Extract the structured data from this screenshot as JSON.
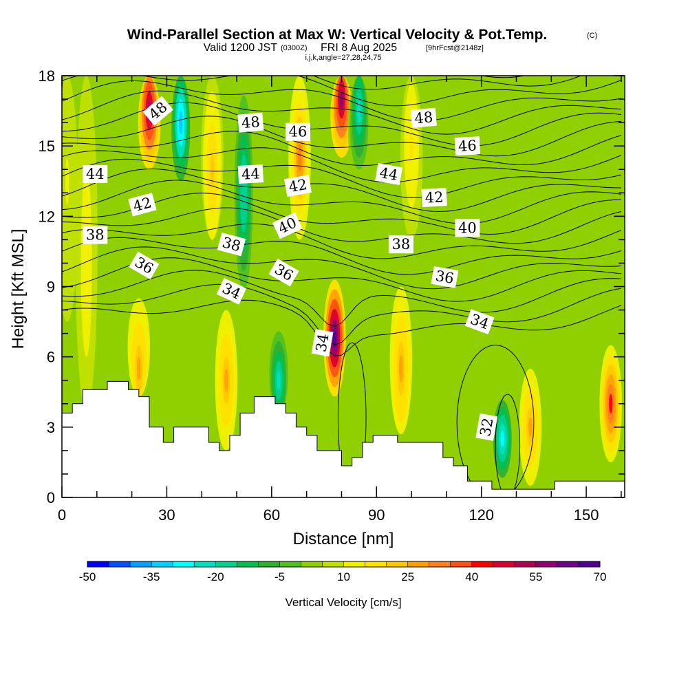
{
  "chart_data": {
    "type": "heatmap",
    "title": "Wind-Parallel Section at Max W: Vertical Velocity & Pot.Temp.",
    "title_mark": "(C)",
    "subtitle_valid": "Valid 1200 JST",
    "subtitle_utc": "(0300Z)",
    "subtitle_date": "FRI 8 Aug 2025",
    "subtitle_fcst": "[9hrFcst@2148z]",
    "subtitle_indices": "i,j,k,angle=27,28,24,75",
    "xlabel": "Distance [nm]",
    "ylabel": "Height [Kft MSL]",
    "xlim": [
      0,
      161
    ],
    "ylim": [
      0,
      18
    ],
    "x_ticks": [
      0,
      30,
      60,
      90,
      120,
      150
    ],
    "y_ticks": [
      0,
      3,
      6,
      9,
      12,
      15,
      18
    ],
    "colorbar": {
      "title": "Vertical Velocity [cm/s]",
      "min": -50,
      "max": 70,
      "step": 5,
      "tick_labels": [
        -50,
        -35,
        -20,
        -5,
        10,
        25,
        40,
        55,
        70
      ],
      "colors": [
        "#0000ff",
        "#0050ff",
        "#00a0ff",
        "#00d0ff",
        "#00ffff",
        "#00e0c0",
        "#00d090",
        "#00c050",
        "#30b030",
        "#50c020",
        "#90d000",
        "#c0e000",
        "#f0f000",
        "#ffe000",
        "#ffc800",
        "#ffa000",
        "#ff8020",
        "#ff5010",
        "#ff0000",
        "#d80030",
        "#b00050",
        "#900070",
        "#700088",
        "#500090"
      ]
    },
    "vertical_velocity_columns": [
      {
        "x": 1.5,
        "w": 10,
        "y0": 3.6,
        "y1": 18,
        "peak_y": 13.5,
        "spread": 6
      },
      {
        "x": 7,
        "w": 12,
        "y0": 3.6,
        "y1": 18,
        "peak_y": 10,
        "spread": 8
      },
      {
        "x": 22,
        "w": 25,
        "y0": 4.3,
        "y1": 10,
        "peak_y": 5.5,
        "spread": 3
      },
      {
        "x": 25,
        "w": 55,
        "y0": 12,
        "y1": 18,
        "peak_y": 16.5,
        "spread": 2.5
      },
      {
        "x": 34,
        "w": -35,
        "y0": 10.5,
        "y1": 18,
        "peak_y": 16,
        "spread": 3
      },
      {
        "x": 43,
        "w": 20,
        "y0": 11,
        "y1": 18,
        "peak_y": 14,
        "spread": 4
      },
      {
        "x": 47,
        "w": 25,
        "y0": 2,
        "y1": 8,
        "peak_y": 5,
        "spread": 3
      },
      {
        "x": 52,
        "w": -20,
        "y0": 1.5,
        "y1": 18,
        "peak_y": 13,
        "spread": 5
      },
      {
        "x": 62,
        "w": -25,
        "y0": 3.5,
        "y1": 8,
        "peak_y": 5,
        "spread": 2.5
      },
      {
        "x": 68,
        "w": 30,
        "y0": 10,
        "y1": 18,
        "peak_y": 14.5,
        "spread": 3.5
      },
      {
        "x": 78,
        "w": 70,
        "y0": 2,
        "y1": 9.5,
        "peak_y": 6.8,
        "spread": 2.5
      },
      {
        "x": 80,
        "w": 55,
        "y0": 12,
        "y1": 18,
        "peak_y": 17,
        "spread": 2.5
      },
      {
        "x": 85,
        "w": -25,
        "y0": 11,
        "y1": 18,
        "peak_y": 16.5,
        "spread": 3
      },
      {
        "x": 97,
        "w": 25,
        "y0": 2.7,
        "y1": 10,
        "peak_y": 5.5,
        "spread": 3.5
      },
      {
        "x": 100,
        "w": 15,
        "y0": 11,
        "y1": 18,
        "peak_y": 15,
        "spread": 4
      },
      {
        "x": 126,
        "w": -30,
        "y0": 0.5,
        "y1": 5,
        "peak_y": 2.5,
        "spread": 2
      },
      {
        "x": 134,
        "w": 25,
        "y0": 0.5,
        "y1": 6,
        "peak_y": 3,
        "spread": 2.5
      },
      {
        "x": 157,
        "w": 40,
        "y0": 0.5,
        "y1": 7,
        "peak_y": 4,
        "spread": 2.5
      }
    ],
    "terrain": [
      [
        0,
        3.6
      ],
      [
        3,
        3.6
      ],
      [
        3,
        4.0
      ],
      [
        6,
        4.0
      ],
      [
        6,
        4.6
      ],
      [
        13,
        4.6
      ],
      [
        13,
        4.95
      ],
      [
        19,
        4.95
      ],
      [
        19,
        4.6
      ],
      [
        22,
        4.6
      ],
      [
        22,
        4.3
      ],
      [
        25,
        4.3
      ],
      [
        25,
        3.0
      ],
      [
        29,
        3.0
      ],
      [
        29,
        2.35
      ],
      [
        32,
        2.35
      ],
      [
        32,
        3.0
      ],
      [
        42,
        3.0
      ],
      [
        42,
        2.35
      ],
      [
        45,
        2.35
      ],
      [
        45,
        2.0
      ],
      [
        48,
        2.0
      ],
      [
        48,
        2.65
      ],
      [
        51,
        2.65
      ],
      [
        51,
        3.6
      ],
      [
        55,
        3.6
      ],
      [
        55,
        4.3
      ],
      [
        61,
        4.3
      ],
      [
        61,
        4.0
      ],
      [
        64,
        4.0
      ],
      [
        64,
        3.6
      ],
      [
        67,
        3.6
      ],
      [
        67,
        3.0
      ],
      [
        70,
        3.0
      ],
      [
        70,
        2.65
      ],
      [
        73,
        2.65
      ],
      [
        73,
        2.0
      ],
      [
        80,
        2.0
      ],
      [
        80,
        1.35
      ],
      [
        83,
        1.35
      ],
      [
        83,
        1.7
      ],
      [
        86,
        1.7
      ],
      [
        86,
        2.35
      ],
      [
        89,
        2.35
      ],
      [
        89,
        2.65
      ],
      [
        96,
        2.65
      ],
      [
        96,
        2.35
      ],
      [
        109,
        2.35
      ],
      [
        109,
        1.7
      ],
      [
        112,
        1.7
      ],
      [
        112,
        1.35
      ],
      [
        116,
        1.35
      ],
      [
        116,
        0.7
      ],
      [
        123,
        0.7
      ],
      [
        123,
        0.35
      ],
      [
        141,
        0.35
      ],
      [
        141,
        0.7
      ],
      [
        161,
        0.7
      ]
    ],
    "theta_contour_labels": [
      {
        "text": "48",
        "x": 27.5,
        "y": 16.5,
        "angle": -40
      },
      {
        "text": "48",
        "x": 54,
        "y": 16.0,
        "angle": -5
      },
      {
        "text": "48",
        "x": 103.5,
        "y": 16.2,
        "angle": -5
      },
      {
        "text": "46",
        "x": 67.5,
        "y": 15.6,
        "angle": 0
      },
      {
        "text": "46",
        "x": 116,
        "y": 15.0,
        "angle": -3
      },
      {
        "text": "44",
        "x": 9.5,
        "y": 13.8,
        "angle": 0
      },
      {
        "text": "44",
        "x": 54,
        "y": 13.8,
        "angle": -3
      },
      {
        "text": "44",
        "x": 93.5,
        "y": 13.8,
        "angle": 10
      },
      {
        "text": "42",
        "x": 23,
        "y": 12.5,
        "angle": -15
      },
      {
        "text": "42",
        "x": 67.5,
        "y": 13.3,
        "angle": -10
      },
      {
        "text": "42",
        "x": 106.5,
        "y": 12.8,
        "angle": -3
      },
      {
        "text": "40",
        "x": 64.5,
        "y": 11.6,
        "angle": -25
      },
      {
        "text": "40",
        "x": 116,
        "y": 11.5,
        "angle": 0
      },
      {
        "text": "38",
        "x": 9.5,
        "y": 11.2,
        "angle": 0
      },
      {
        "text": "38",
        "x": 48.5,
        "y": 10.8,
        "angle": 15
      },
      {
        "text": "38",
        "x": 97,
        "y": 10.8,
        "angle": 0
      },
      {
        "text": "36",
        "x": 23.5,
        "y": 9.9,
        "angle": 30
      },
      {
        "text": "36",
        "x": 63.5,
        "y": 9.6,
        "angle": 30
      },
      {
        "text": "36",
        "x": 109.5,
        "y": 9.4,
        "angle": 10
      },
      {
        "text": "34",
        "x": 48.5,
        "y": 8.8,
        "angle": 25
      },
      {
        "text": "34",
        "x": 74.5,
        "y": 6.6,
        "angle": -80
      },
      {
        "text": "34",
        "x": 119.5,
        "y": 7.5,
        "angle": 20
      },
      {
        "text": "32",
        "x": 121.5,
        "y": 3.0,
        "angle": -80
      }
    ]
  }
}
